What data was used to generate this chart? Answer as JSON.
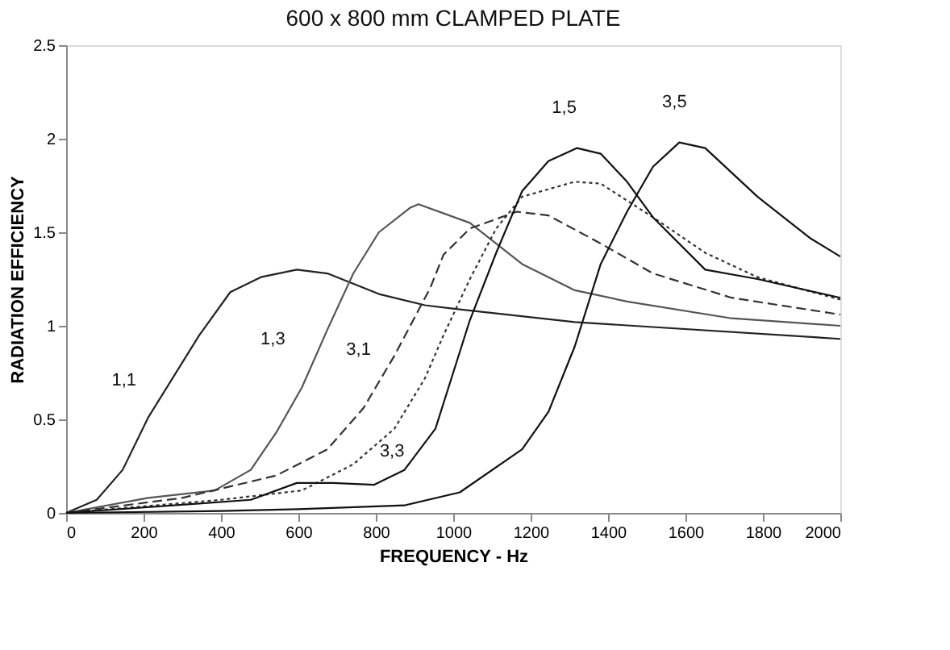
{
  "chart_data": {
    "type": "line",
    "title": "600 x 800 mm CLAMPED PLATE",
    "xlabel": "FREQUENCY - Hz",
    "ylabel": "RADIATION EFFICIENCY",
    "xlim": [
      0,
      2000
    ],
    "xticks": [
      0,
      200,
      400,
      600,
      800,
      1000,
      1200,
      1400,
      1600,
      1800,
      2000
    ],
    "ylim": [
      0,
      2.5
    ],
    "yticks": [
      0,
      0.5,
      1,
      1.5,
      2,
      2.5
    ],
    "grid": false,
    "legend": false,
    "marker": "none",
    "series": [
      {
        "name": "1,1",
        "color": "#222222",
        "line_style": "solid",
        "x": [
          0,
          79,
          146,
          212,
          278,
          344,
          424,
          503,
          596,
          675,
          808,
          927,
          1007,
          1314,
          2000
        ],
        "values": [
          0,
          0.07,
          0.23,
          0.51,
          0.73,
          0.95,
          1.18,
          1.26,
          1.3,
          1.28,
          1.17,
          1.11,
          1.09,
          1.02,
          0.93
        ]
      },
      {
        "name": "1,3",
        "color": "#555555",
        "line_style": "solid",
        "x": [
          0,
          212,
          384,
          477,
          543,
          609,
          675,
          742,
          808,
          888,
          910,
          1043,
          1178,
          1314,
          1449,
          1719,
          2000
        ],
        "values": [
          0,
          0.08,
          0.12,
          0.23,
          0.43,
          0.67,
          0.98,
          1.28,
          1.5,
          1.63,
          1.65,
          1.55,
          1.33,
          1.19,
          1.13,
          1.04,
          1.0
        ]
      },
      {
        "name": "3,1",
        "color": "#333333",
        "line_style": "dashed",
        "x": [
          0,
          300,
          543,
          675,
          768,
          848,
          940,
          975,
          1043,
          1164,
          1246,
          1381,
          1516,
          1719,
          2000
        ],
        "values": [
          0,
          0.08,
          0.2,
          0.34,
          0.56,
          0.84,
          1.2,
          1.38,
          1.52,
          1.61,
          1.59,
          1.44,
          1.28,
          1.15,
          1.06
        ]
      },
      {
        "name": "3,3",
        "color": "#333333",
        "line_style": "dotted",
        "x": [
          0,
          400,
          609,
          742,
          848,
          927,
          975,
          1043,
          1111,
          1178,
          1314,
          1381,
          1516,
          1651,
          1786,
          2000
        ],
        "values": [
          0,
          0.07,
          0.12,
          0.26,
          0.45,
          0.72,
          0.95,
          1.25,
          1.52,
          1.69,
          1.77,
          1.76,
          1.58,
          1.39,
          1.26,
          1.14
        ]
      },
      {
        "name": "1,5",
        "color": "#111111",
        "line_style": "solid",
        "x": [
          0,
          344,
          477,
          596,
          689,
          795,
          874,
          954,
          1043,
          1111,
          1178,
          1246,
          1320,
          1381,
          1449,
          1516,
          1651,
          1786,
          2000
        ],
        "values": [
          0,
          0.05,
          0.07,
          0.16,
          0.16,
          0.15,
          0.23,
          0.45,
          1.03,
          1.39,
          1.72,
          1.88,
          1.95,
          1.92,
          1.77,
          1.58,
          1.3,
          1.25,
          1.15
        ]
      },
      {
        "name": "3,5",
        "color": "#111111",
        "line_style": "solid",
        "x": [
          0,
          400,
          600,
          874,
          1017,
          1178,
          1246,
          1314,
          1381,
          1449,
          1516,
          1584,
          1651,
          1786,
          1921,
          2000
        ],
        "values": [
          0,
          0.01,
          0.02,
          0.04,
          0.11,
          0.34,
          0.54,
          0.89,
          1.33,
          1.61,
          1.85,
          1.98,
          1.95,
          1.69,
          1.47,
          1.37
        ]
      }
    ]
  }
}
